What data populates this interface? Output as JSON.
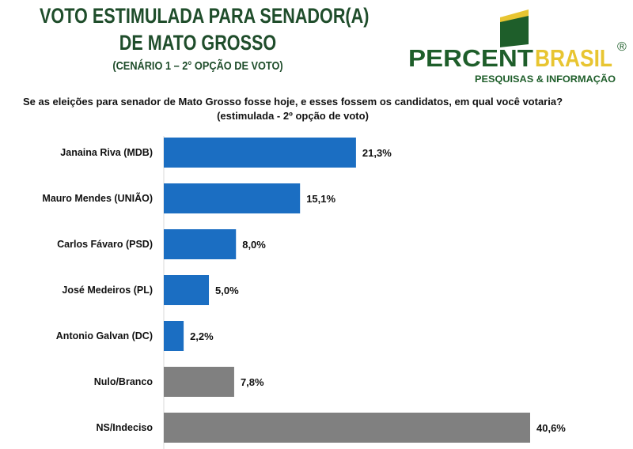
{
  "header": {
    "title_line1": "VOTO ESTIMULADA PARA SENADOR(A)",
    "title_line2": "DE MATO GROSSO",
    "subtitle": "(CENÁRIO 1 – 2° OPÇÃO DE VOTO)"
  },
  "logo": {
    "brand_part1": "PERCENT",
    "brand_part2": "BRASIL",
    "registered": "®",
    "tagline": "PESQUISAS & INFORMAÇÃO"
  },
  "question": "Se as eleições para senador de Mato Grosso fosse hoje, e esses fossem os candidatos, em qual você votaria? (estimulada - 2º opção de voto)",
  "colors": {
    "title": "#1f4d2b",
    "candidate_bar": "#1b6ec2",
    "other_bar": "#808080",
    "logo_green": "#1e5e2a",
    "logo_yellow": "#e8c531"
  },
  "chart_data": {
    "type": "bar",
    "orientation": "horizontal",
    "title": "",
    "xlabel": "",
    "ylabel": "",
    "categories": [
      "Janaina Riva (MDB)",
      "Mauro Mendes (UNIÃO)",
      "Carlos Fávaro (PSD)",
      "José Medeiros (PL)",
      "Antonio Galvan (DC)",
      "Nulo/Branco",
      "NS/Indeciso"
    ],
    "values": [
      21.3,
      15.1,
      8.0,
      5.0,
      2.2,
      7.8,
      40.6
    ],
    "value_labels": [
      "21,3%",
      "15,1%",
      "8,0%",
      "5,0%",
      "2,2%",
      "7,8%",
      "40,6%"
    ],
    "bar_colors": [
      "#1b6ec2",
      "#1b6ec2",
      "#1b6ec2",
      "#1b6ec2",
      "#1b6ec2",
      "#808080",
      "#808080"
    ],
    "xlim": [
      0,
      40.6
    ],
    "grid": false,
    "legend": "none"
  }
}
